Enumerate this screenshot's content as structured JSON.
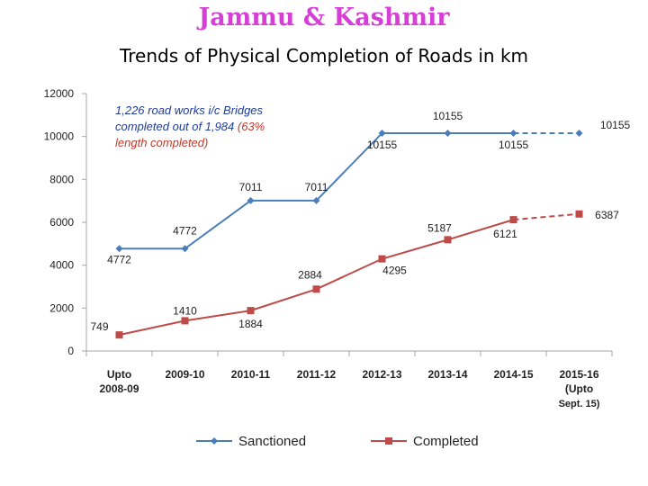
{
  "title": "Jammu & Kashmir",
  "subtitle": "Trends of Physical Completion of Roads in km",
  "annotation": {
    "line1": "1,226 road works i/c Bridges",
    "line2": "completed out of 1,984",
    "line2_red": "(63%",
    "line3": "length completed)"
  },
  "colors": {
    "title": "#d63fd6",
    "sanctioned": "#4a7ebb",
    "completed": "#be4b48",
    "annotation": "#1f3d99"
  },
  "chart_data": {
    "type": "line",
    "categories": [
      [
        "Upto",
        "2008-09"
      ],
      [
        "2009-10"
      ],
      [
        "2010-11"
      ],
      [
        "2011-12"
      ],
      [
        "2012-13"
      ],
      [
        "2013-14"
      ],
      [
        "2014-15"
      ],
      [
        "2015-16",
        "(Upto",
        "Sept. 15)"
      ]
    ],
    "ylim": [
      0,
      12000
    ],
    "yticks": [
      "0",
      "2000",
      "4000",
      "6000",
      "8000",
      "10000",
      "12000"
    ],
    "series": [
      {
        "name": "Sanctioned",
        "values": [
          4772,
          4772,
          7011,
          7011,
          10155,
          10155,
          10155,
          10155
        ],
        "dashed_last_segment": true,
        "labels": [
          "4772",
          "4772",
          "7011",
          "7011",
          "10155",
          "10155",
          "10155",
          "10155"
        ]
      },
      {
        "name": "Completed",
        "values": [
          749,
          1410,
          1884,
          2884,
          4295,
          5187,
          6121,
          6387
        ],
        "dashed_last_segment": true,
        "labels": [
          "749",
          "1410",
          "1884",
          "2884",
          "4295",
          "5187",
          "6121",
          "6387"
        ]
      }
    ],
    "legend_position": "bottom",
    "grid": false
  }
}
